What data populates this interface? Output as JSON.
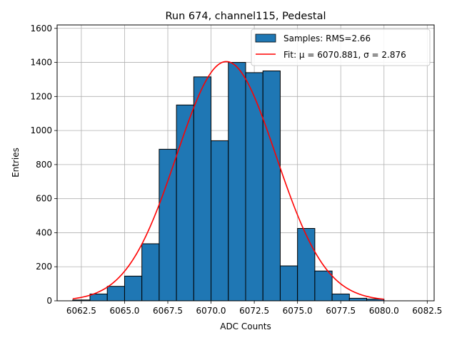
{
  "chart_data": {
    "type": "bar",
    "title": "Run 674, channel115, Pedestal",
    "xlabel": "ADC Counts",
    "ylabel": "Entries",
    "xlim": [
      6061.1,
      6082.9
    ],
    "ylim": [
      0,
      1620
    ],
    "xticks": [
      "6062.5",
      "6065.0",
      "6067.5",
      "6070.0",
      "6072.5",
      "6075.0",
      "6077.5",
      "6080.0",
      "6082.5"
    ],
    "yticks": [
      "0",
      "200",
      "400",
      "600",
      "800",
      "1000",
      "1200",
      "1400",
      "1600"
    ],
    "grid": true,
    "legend_position": "top-right",
    "bin_edges": [
      6062,
      6063,
      6064,
      6065,
      6066,
      6067,
      6068,
      6069,
      6070,
      6071,
      6072,
      6073,
      6074,
      6075,
      6076,
      6077,
      6078,
      6079,
      6080,
      6081,
      6082
    ],
    "series": [
      {
        "name": "Samples: RMS=2.66",
        "kind": "histogram",
        "color": "#1f77b4",
        "values": [
          5,
          40,
          85,
          145,
          335,
          890,
          1150,
          1315,
          940,
          1400,
          1340,
          1350,
          205,
          425,
          175,
          40,
          15,
          10,
          0,
          0
        ]
      },
      {
        "name": "Fit: μ = 6070.881, σ = 2.876",
        "kind": "gaussian-fit",
        "color": "#ff0000",
        "mu": 6070.881,
        "sigma": 2.876,
        "amplitude": 1405,
        "x_range": [
          6062,
          6080
        ]
      }
    ]
  }
}
